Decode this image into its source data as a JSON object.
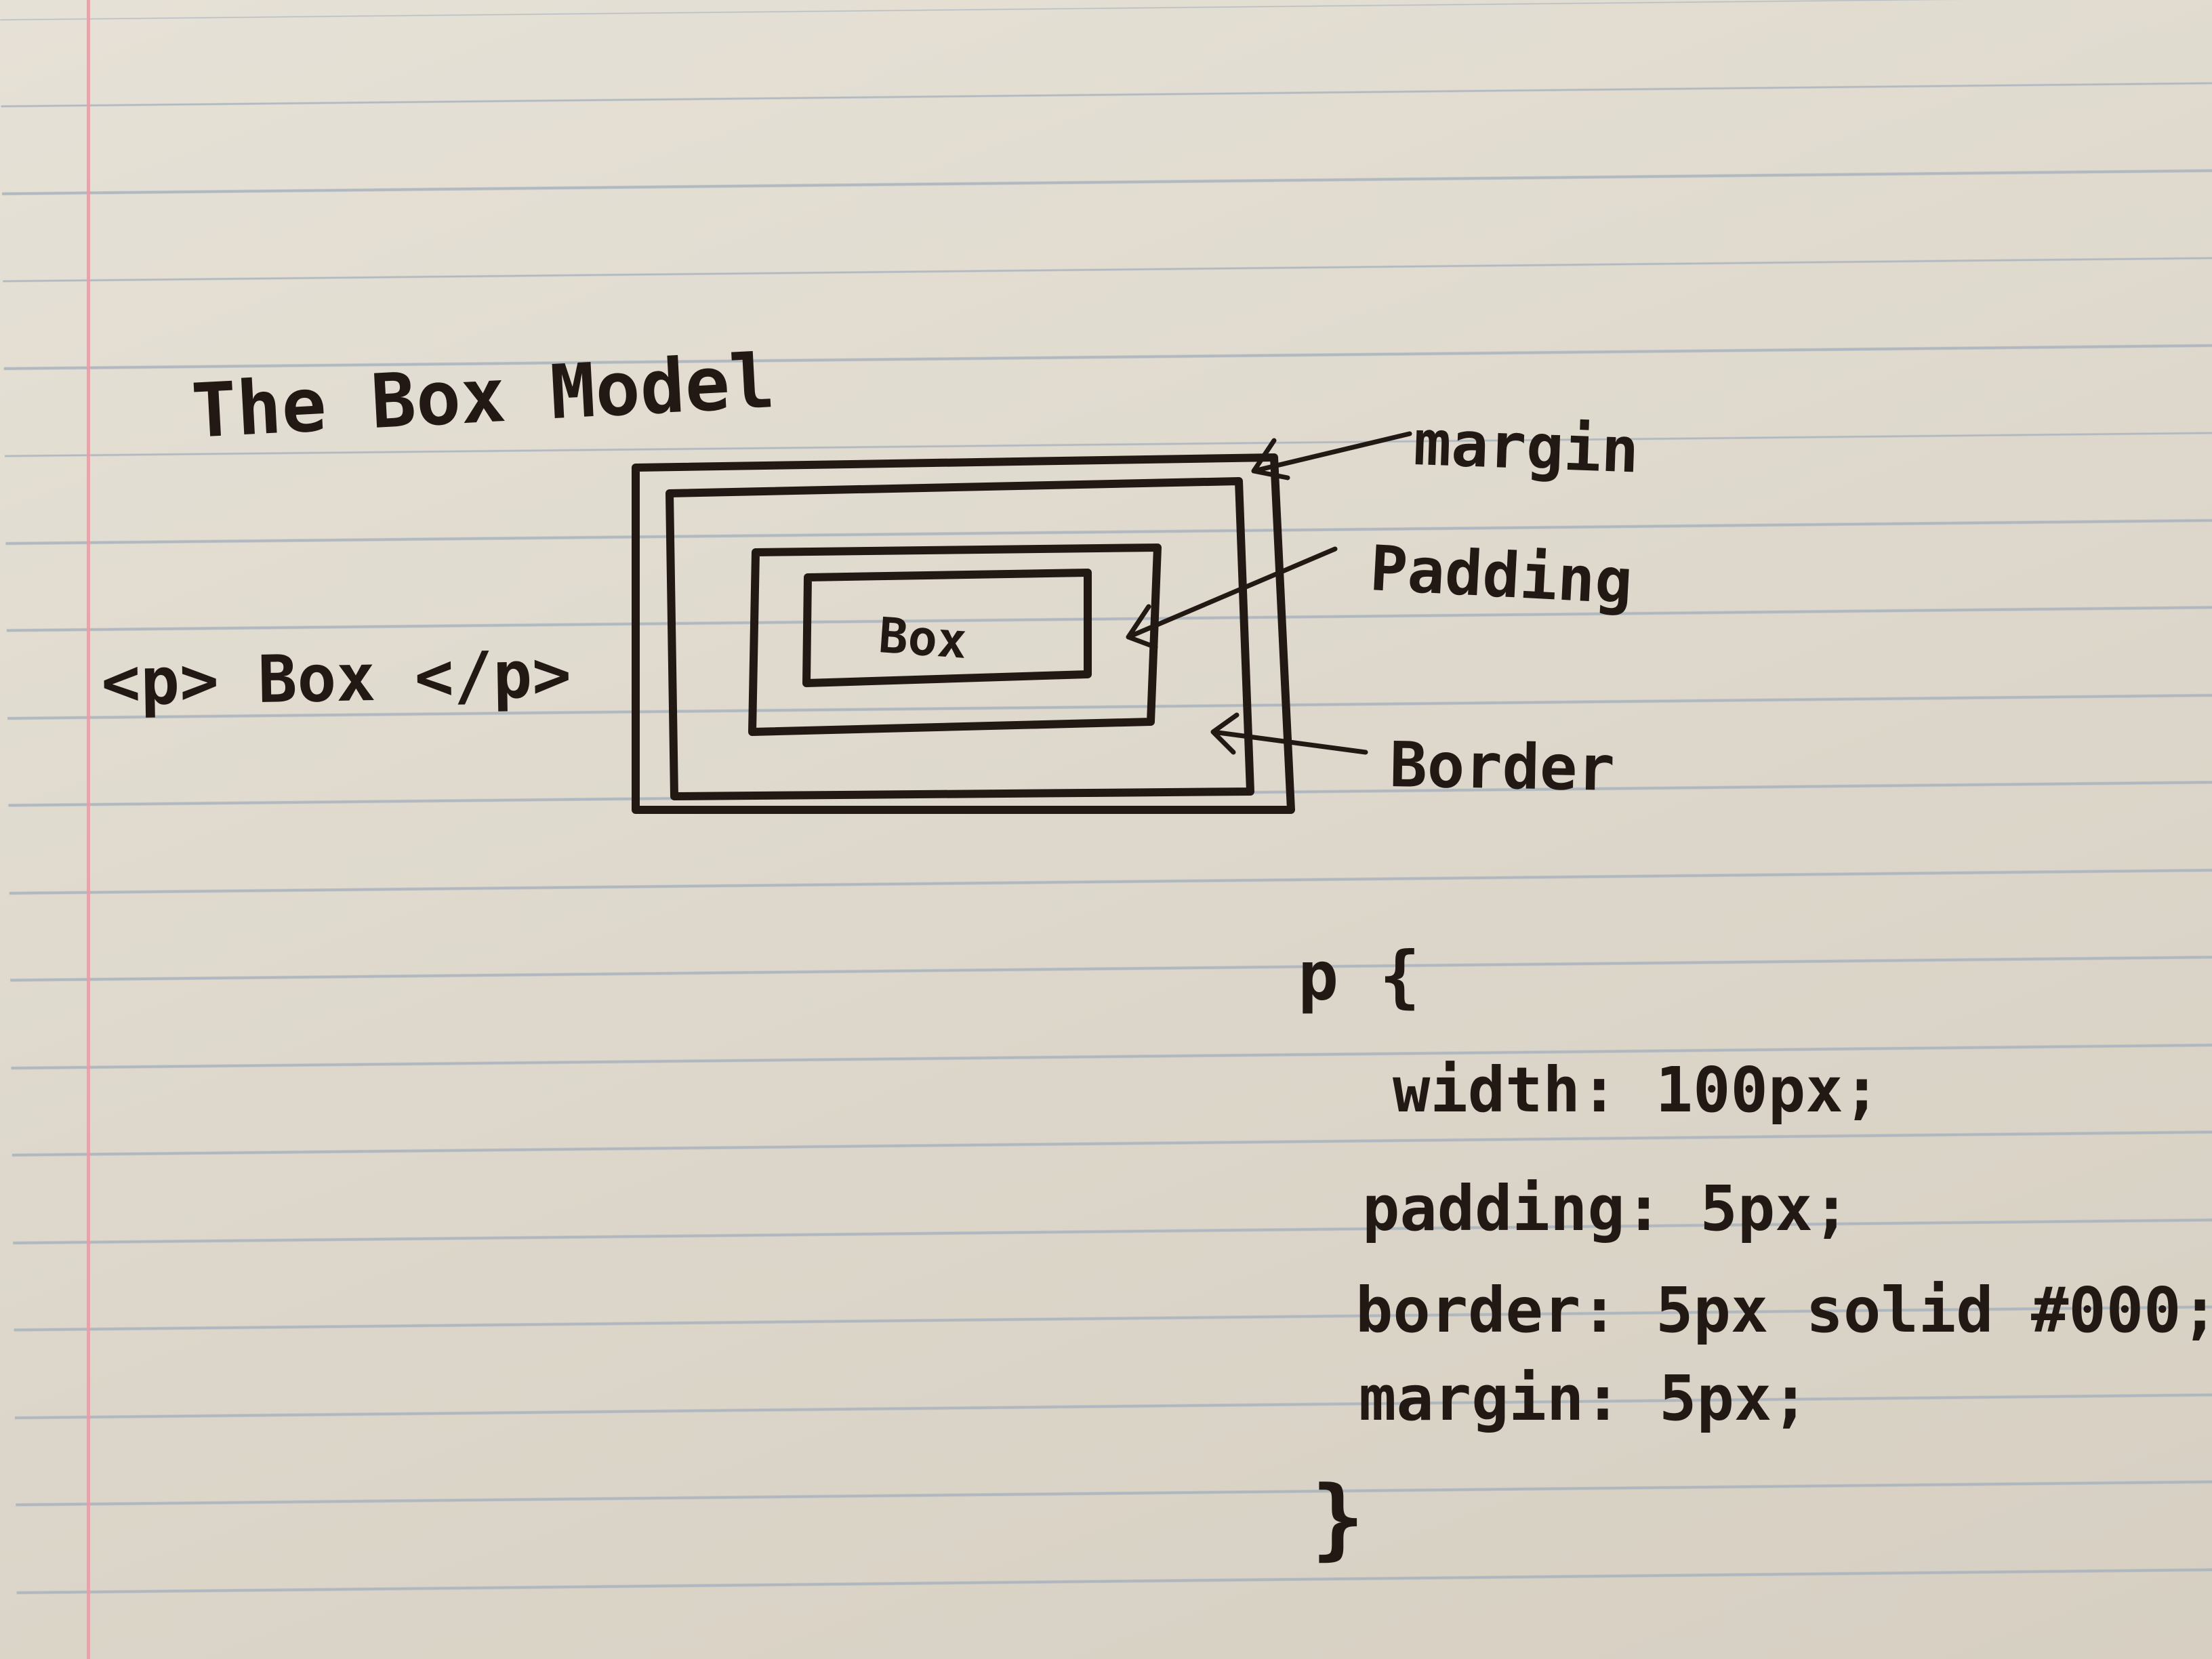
{
  "title": "The Box Model",
  "html_snippet": "<p> Box </p>",
  "box_text": "Box",
  "labels": {
    "margin": "margin",
    "padding": "Padding",
    "border": "Border"
  },
  "css": {
    "selector_open": "p {",
    "width": "width: 100px;",
    "padding": "padding: 5px;",
    "border": "border: 5px solid #000;",
    "margin": "margin: 5px;",
    "close": "}"
  },
  "colors": {
    "ink": "#231914",
    "paper": "#e2ddd2",
    "rule": "#a7b2bd",
    "margin_line": "#e4a0a6"
  }
}
